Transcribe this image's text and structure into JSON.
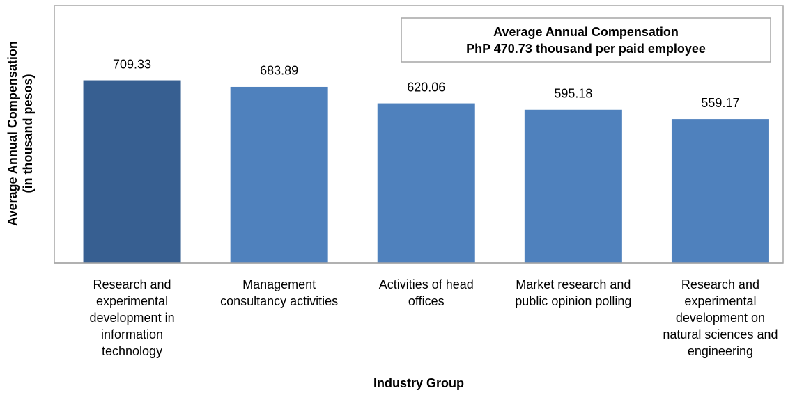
{
  "chart_data": {
    "type": "bar",
    "x_label": "Industry Group",
    "y_label": [
      "Average Annual Compensation",
      "(in thousand pesos)"
    ],
    "annotation": [
      "Average Annual Compensation",
      "PhP 470.73 thousand per paid employee"
    ],
    "categories": [
      "Research and experimental development in information technology",
      "Management consultancy activities",
      "Activities of head offices",
      "Market research and public opinion polling",
      "Research and experimental development on natural sciences and engineering"
    ],
    "values": [
      709.33,
      683.89,
      620.06,
      595.18,
      559.17
    ],
    "colors": [
      "#375f91",
      "#4f81bd",
      "#4f81bd",
      "#4f81bd",
      "#4f81bd"
    ],
    "ylim": [
      0,
      1000
    ],
    "grid": false
  }
}
